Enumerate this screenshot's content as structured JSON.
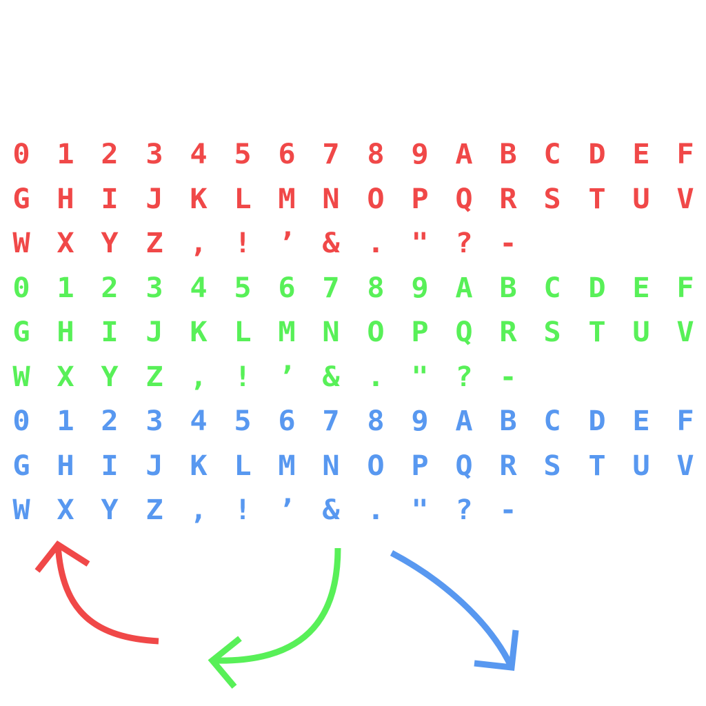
{
  "palettes": [
    {
      "name": "red",
      "color": "#f04848"
    },
    {
      "name": "green",
      "color": "#58f058"
    },
    {
      "name": "blue",
      "color": "#5898f0"
    }
  ],
  "glyph_rows": [
    [
      "0",
      "1",
      "2",
      "3",
      "4",
      "5",
      "6",
      "7",
      "8",
      "9",
      "A",
      "B",
      "C",
      "D",
      "E",
      "F"
    ],
    [
      "G",
      "H",
      "I",
      "J",
      "K",
      "L",
      "M",
      "N",
      "O",
      "P",
      "Q",
      "R",
      "S",
      "T",
      "U",
      "V"
    ],
    [
      "W",
      "X",
      "Y",
      "Z",
      ",",
      "!",
      "’",
      "&",
      ".",
      "\"",
      "?",
      "-"
    ]
  ],
  "arrows": [
    {
      "color": "#f04848",
      "icon": "curved-arrow-left-up-icon"
    },
    {
      "color": "#58f058",
      "icon": "curved-arrow-down-left-icon"
    },
    {
      "color": "#5898f0",
      "icon": "curved-arrow-down-right-icon"
    }
  ]
}
